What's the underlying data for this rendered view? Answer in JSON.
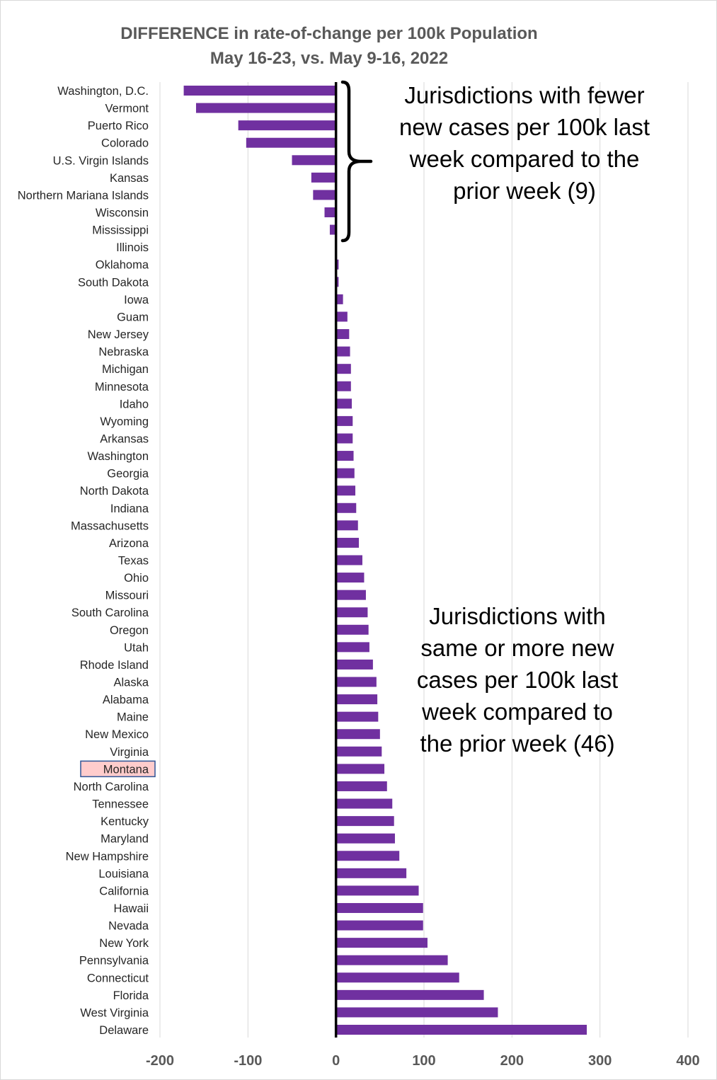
{
  "chart_data": {
    "type": "bar",
    "orientation": "horizontal",
    "title": "DIFFERENCE in rate-of-change per 100k Population",
    "subtitle": "May 16-23, vs. May 9-16, 2022",
    "xlim": [
      -200,
      400
    ],
    "xticks": [
      -200,
      -100,
      0,
      100,
      200,
      300,
      400
    ],
    "grid": "vertical",
    "bar_color": "#7030a0",
    "highlight": {
      "category": "Montana",
      "fill": "#ffcccc",
      "border": "#2f5597"
    },
    "categories": [
      "Washington, D.C.",
      "Vermont",
      "Puerto Rico",
      "Colorado",
      "U.S. Virgin Islands",
      "Kansas",
      "Northern Mariana Islands",
      "Wisconsin",
      "Mississippi",
      "Illinois",
      "Oklahoma",
      "South Dakota",
      "Iowa",
      "Guam",
      "New Jersey",
      "Nebraska",
      "Michigan",
      "Minnesota",
      "Idaho",
      "Wyoming",
      "Arkansas",
      "Washington",
      "Georgia",
      "North Dakota",
      "Indiana",
      "Massachusetts",
      "Arizona",
      "Texas",
      "Ohio",
      "Missouri",
      "South Carolina",
      "Oregon",
      "Utah",
      "Rhode Island",
      "Alaska",
      "Alabama",
      "Maine",
      "New Mexico",
      "Virginia",
      "Montana",
      "North Carolina",
      "Tennessee",
      "Kentucky",
      "Maryland",
      "New Hampshire",
      "Louisiana",
      "California",
      "Hawaii",
      "Nevada",
      "New York",
      "Pennsylvania",
      "Connecticut",
      "Florida",
      "West Virginia",
      "Delaware"
    ],
    "values": [
      -173,
      -159,
      -111,
      -102,
      -50,
      -28,
      -26,
      -13,
      -7,
      0,
      3,
      3,
      8,
      13,
      15,
      16,
      17,
      17,
      18,
      19,
      19,
      20,
      21,
      22,
      23,
      25,
      26,
      30,
      32,
      34,
      36,
      37,
      38,
      42,
      46,
      47,
      48,
      50,
      52,
      55,
      58,
      64,
      66,
      67,
      72,
      80,
      94,
      99,
      99,
      104,
      127,
      140,
      168,
      184,
      285
    ],
    "annotations": [
      {
        "id": "fewer",
        "text": "Jurisdictions with fewer new cases per 100k last week compared to the prior week (9)"
      },
      {
        "id": "more",
        "text": "Jurisdictions with same or more new cases per 100k last week compared to the prior week (46)"
      }
    ]
  },
  "annotations_display": {
    "fewer_lines": [
      "Jurisdictions with fewer",
      "new cases per 100k last",
      "week compared to the",
      "prior week (9)"
    ],
    "more_lines": [
      "Jurisdictions with",
      "same or more new",
      "cases per 100k last",
      "week compared to",
      "the prior week (46)"
    ]
  }
}
